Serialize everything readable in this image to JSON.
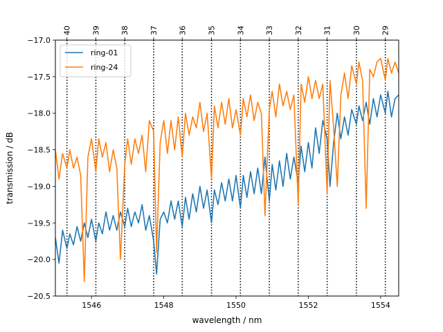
{
  "chart_data": {
    "type": "line",
    "title": "",
    "xlabel": "wavelength / nm",
    "ylabel": "transmission / dB",
    "xlim": [
      1545.0,
      1554.5
    ],
    "ylim": [
      -20.5,
      -17.0
    ],
    "x_ticks": [
      1546,
      1548,
      1550,
      1552,
      1554
    ],
    "y_ticks": [
      -20.5,
      -20.0,
      -19.5,
      -19.0,
      -18.5,
      -18.0,
      -17.5,
      -17.0
    ],
    "y_tick_labels": [
      "−20.5",
      "−20.0",
      "−19.5",
      "−19.0",
      "−18.5",
      "−18.0",
      "−17.5",
      "−17.0"
    ],
    "grid": false,
    "legend_position": "top-left",
    "channel_markers": [
      {
        "label": "40",
        "x": 1545.32
      },
      {
        "label": "39",
        "x": 1546.12
      },
      {
        "label": "38",
        "x": 1546.92
      },
      {
        "label": "37",
        "x": 1547.72
      },
      {
        "label": "36",
        "x": 1548.51
      },
      {
        "label": "35",
        "x": 1549.32
      },
      {
        "label": "34",
        "x": 1550.12
      },
      {
        "label": "33",
        "x": 1550.92
      },
      {
        "label": "32",
        "x": 1551.72
      },
      {
        "label": "31",
        "x": 1552.52
      },
      {
        "label": "30",
        "x": 1553.33
      },
      {
        "label": "29",
        "x": 1554.13
      }
    ],
    "series": [
      {
        "name": "ring-01",
        "color": "#1f77b4",
        "x": [
          1545.0,
          1545.1,
          1545.2,
          1545.32,
          1545.4,
          1545.5,
          1545.6,
          1545.7,
          1545.8,
          1545.9,
          1546.0,
          1546.12,
          1546.2,
          1546.3,
          1546.4,
          1546.5,
          1546.6,
          1546.7,
          1546.8,
          1546.92,
          1547.0,
          1547.1,
          1547.2,
          1547.3,
          1547.4,
          1547.5,
          1547.6,
          1547.72,
          1547.8,
          1547.9,
          1548.0,
          1548.1,
          1548.2,
          1548.3,
          1548.4,
          1548.51,
          1548.6,
          1548.7,
          1548.8,
          1548.9,
          1549.0,
          1549.1,
          1549.2,
          1549.32,
          1549.4,
          1549.5,
          1549.6,
          1549.7,
          1549.8,
          1549.9,
          1550.0,
          1550.12,
          1550.2,
          1550.3,
          1550.4,
          1550.5,
          1550.6,
          1550.7,
          1550.8,
          1550.92,
          1551.0,
          1551.1,
          1551.2,
          1551.3,
          1551.4,
          1551.5,
          1551.6,
          1551.72,
          1551.8,
          1551.9,
          1552.0,
          1552.1,
          1552.2,
          1552.3,
          1552.4,
          1552.52,
          1552.6,
          1552.7,
          1552.8,
          1552.9,
          1553.0,
          1553.1,
          1553.2,
          1553.33,
          1553.4,
          1553.5,
          1553.6,
          1553.7,
          1553.8,
          1553.9,
          1554.0,
          1554.13,
          1554.2,
          1554.3,
          1554.4,
          1554.5
        ],
        "y": [
          -19.7,
          -20.05,
          -19.6,
          -19.85,
          -19.65,
          -19.8,
          -19.55,
          -19.75,
          -19.5,
          -19.7,
          -19.45,
          -19.75,
          -19.5,
          -19.65,
          -19.35,
          -19.6,
          -19.4,
          -19.6,
          -19.35,
          -19.55,
          -19.3,
          -19.55,
          -19.35,
          -19.5,
          -19.25,
          -19.6,
          -19.4,
          -19.75,
          -20.2,
          -19.45,
          -19.35,
          -19.5,
          -19.2,
          -19.45,
          -19.2,
          -19.55,
          -19.15,
          -19.45,
          -19.1,
          -19.35,
          -19.0,
          -19.3,
          -19.05,
          -19.5,
          -19.05,
          -19.25,
          -18.95,
          -19.2,
          -18.9,
          -19.2,
          -18.85,
          -19.3,
          -18.85,
          -19.15,
          -18.8,
          -19.1,
          -18.75,
          -19.1,
          -18.6,
          -19.2,
          -18.7,
          -19.05,
          -18.65,
          -19.0,
          -18.55,
          -18.9,
          -18.6,
          -18.95,
          -18.45,
          -18.8,
          -18.4,
          -18.75,
          -18.2,
          -18.55,
          -18.1,
          -18.35,
          -19.0,
          -18.4,
          -18.0,
          -18.35,
          -18.05,
          -18.3,
          -17.95,
          -18.15,
          -17.9,
          -18.1,
          -17.85,
          -18.15,
          -17.8,
          -18.05,
          -17.75,
          -18.0,
          -17.7,
          -18.05,
          -17.8,
          -17.75
        ]
      },
      {
        "name": "ring-24",
        "color": "#ff7f0e",
        "x": [
          1545.0,
          1545.1,
          1545.2,
          1545.32,
          1545.4,
          1545.5,
          1545.6,
          1545.7,
          1545.8,
          1545.9,
          1546.0,
          1546.12,
          1546.2,
          1546.3,
          1546.4,
          1546.5,
          1546.6,
          1546.7,
          1546.8,
          1546.92,
          1547.0,
          1547.1,
          1547.2,
          1547.3,
          1547.4,
          1547.5,
          1547.6,
          1547.72,
          1547.8,
          1547.9,
          1548.0,
          1548.1,
          1548.2,
          1548.3,
          1548.4,
          1548.51,
          1548.6,
          1548.7,
          1548.8,
          1548.9,
          1549.0,
          1549.1,
          1549.2,
          1549.32,
          1549.4,
          1549.5,
          1549.6,
          1549.7,
          1549.8,
          1549.9,
          1550.0,
          1550.12,
          1550.2,
          1550.3,
          1550.4,
          1550.5,
          1550.6,
          1550.7,
          1550.8,
          1550.92,
          1551.0,
          1551.1,
          1551.2,
          1551.3,
          1551.4,
          1551.5,
          1551.6,
          1551.72,
          1551.8,
          1551.9,
          1552.0,
          1552.1,
          1552.2,
          1552.3,
          1552.4,
          1552.52,
          1552.6,
          1552.7,
          1552.8,
          1552.9,
          1553.0,
          1553.1,
          1553.2,
          1553.33,
          1553.4,
          1553.5,
          1553.6,
          1553.7,
          1553.8,
          1553.9,
          1554.0,
          1554.13,
          1554.2,
          1554.3,
          1554.4,
          1554.5
        ],
        "y": [
          -18.5,
          -18.9,
          -18.55,
          -18.75,
          -18.5,
          -18.75,
          -18.6,
          -18.85,
          -20.3,
          -18.6,
          -18.35,
          -18.8,
          -18.35,
          -18.6,
          -18.4,
          -18.8,
          -18.5,
          -18.75,
          -20.0,
          -18.7,
          -18.35,
          -18.7,
          -18.35,
          -18.55,
          -18.3,
          -18.8,
          -18.1,
          -18.25,
          -19.9,
          -18.4,
          -18.1,
          -18.55,
          -18.1,
          -18.5,
          -18.05,
          -18.6,
          -18.0,
          -18.3,
          -18.05,
          -18.2,
          -17.85,
          -18.25,
          -18.0,
          -18.9,
          -17.9,
          -18.2,
          -17.85,
          -18.15,
          -17.8,
          -18.2,
          -17.95,
          -18.3,
          -17.8,
          -18.05,
          -17.75,
          -18.1,
          -17.85,
          -18.0,
          -19.4,
          -17.95,
          -17.7,
          -18.05,
          -17.6,
          -17.9,
          -17.7,
          -17.95,
          -17.75,
          -19.25,
          -17.6,
          -17.85,
          -17.5,
          -17.8,
          -17.55,
          -17.8,
          -17.6,
          -19.1,
          -17.55,
          -18.2,
          -19.0,
          -17.75,
          -17.45,
          -17.8,
          -17.35,
          -17.6,
          -17.3,
          -17.55,
          -19.3,
          -17.4,
          -17.5,
          -17.3,
          -17.25,
          -17.55,
          -17.25,
          -17.45,
          -17.3,
          -17.45
        ]
      }
    ]
  }
}
